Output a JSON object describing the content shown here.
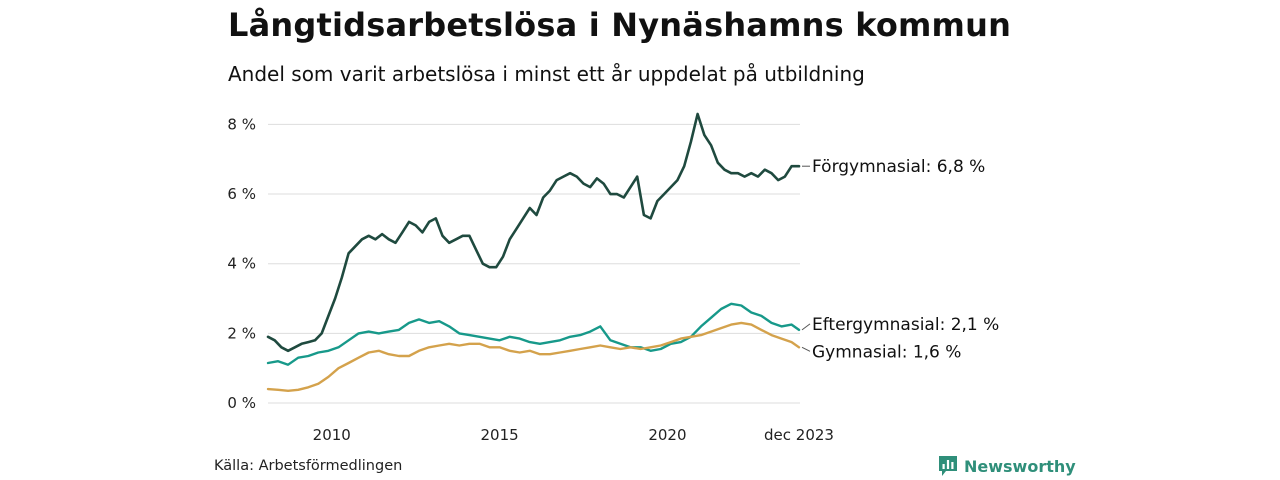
{
  "header": {
    "title": "Långtidsarbetslösa i Nynäshamns kommun",
    "subtitle": "Andel som varit arbetslösa i minst ett år uppdelat på utbildning"
  },
  "footer": {
    "source": "Källa: Arbetsförmedlingen",
    "brand": "Newsworthy"
  },
  "colors": {
    "forgymnasial": "#1f4a3f",
    "eftergymnasial": "#17998a",
    "gymnasial": "#d4a24c",
    "grid": "#dddddd",
    "brand": "#2f8f7a"
  },
  "chart_data": {
    "type": "line",
    "title": "Långtidsarbetslösa i Nynäshamns kommun",
    "subtitle": "Andel som varit arbetslösa i minst ett år uppdelat på utbildning",
    "xlim": [
      2008.1,
      2023.95
    ],
    "ylim": [
      0,
      8.5
    ],
    "y_ticks": [
      0,
      2,
      4,
      6,
      8
    ],
    "y_tick_labels": [
      "0 %",
      "2 %",
      "4 %",
      "6 %",
      "8 %"
    ],
    "x_ticks": [
      2010,
      2015,
      2020,
      2023.92
    ],
    "x_tick_labels": [
      "2010",
      "2015",
      "2020",
      "dec 2023"
    ],
    "grid": true,
    "series": [
      {
        "name": "Förgymnasial",
        "label": "Förgymnasial: 6,8 %",
        "color": "#1f4a3f",
        "x": [
          2008.1,
          2008.3,
          2008.5,
          2008.7,
          2008.9,
          2009.1,
          2009.3,
          2009.5,
          2009.7,
          2009.9,
          2010.1,
          2010.3,
          2010.5,
          2010.7,
          2010.9,
          2011.1,
          2011.3,
          2011.5,
          2011.7,
          2011.9,
          2012.1,
          2012.3,
          2012.5,
          2012.7,
          2012.9,
          2013.1,
          2013.3,
          2013.5,
          2013.7,
          2013.9,
          2014.1,
          2014.3,
          2014.5,
          2014.7,
          2014.9,
          2015.1,
          2015.3,
          2015.5,
          2015.7,
          2015.9,
          2016.1,
          2016.3,
          2016.5,
          2016.7,
          2016.9,
          2017.1,
          2017.3,
          2017.5,
          2017.7,
          2017.9,
          2018.1,
          2018.3,
          2018.5,
          2018.7,
          2018.9,
          2019.1,
          2019.3,
          2019.5,
          2019.7,
          2019.9,
          2020.1,
          2020.3,
          2020.5,
          2020.7,
          2020.9,
          2021.1,
          2021.3,
          2021.5,
          2021.7,
          2021.9,
          2022.1,
          2022.3,
          2022.5,
          2022.7,
          2022.9,
          2023.1,
          2023.3,
          2023.5,
          2023.7,
          2023.92
        ],
        "values": [
          1.9,
          1.8,
          1.6,
          1.5,
          1.6,
          1.7,
          1.75,
          1.8,
          2.0,
          2.5,
          3.0,
          3.6,
          4.3,
          4.5,
          4.7,
          4.8,
          4.7,
          4.85,
          4.7,
          4.6,
          4.9,
          5.2,
          5.1,
          4.9,
          5.2,
          5.3,
          4.8,
          4.6,
          4.7,
          4.8,
          4.8,
          4.4,
          4.0,
          3.9,
          3.9,
          4.2,
          4.7,
          5.0,
          5.3,
          5.6,
          5.4,
          5.9,
          6.1,
          6.4,
          6.5,
          6.6,
          6.5,
          6.3,
          6.2,
          6.45,
          6.3,
          6.0,
          6.0,
          5.9,
          6.2,
          6.5,
          5.4,
          5.3,
          5.8,
          6.0,
          6.2,
          6.4,
          6.8,
          7.5,
          8.3,
          7.7,
          7.4,
          6.9,
          6.7,
          6.6,
          6.6,
          6.5,
          6.6,
          6.5,
          6.7,
          6.6,
          6.4,
          6.5,
          6.8,
          6.8
        ]
      },
      {
        "name": "Eftergymnasial",
        "label": "Eftergymnasial: 2,1 %",
        "color": "#17998a",
        "x": [
          2008.1,
          2008.4,
          2008.7,
          2009.0,
          2009.3,
          2009.6,
          2009.9,
          2010.2,
          2010.5,
          2010.8,
          2011.1,
          2011.4,
          2011.7,
          2012.0,
          2012.3,
          2012.6,
          2012.9,
          2013.2,
          2013.5,
          2013.8,
          2014.1,
          2014.4,
          2014.7,
          2015.0,
          2015.3,
          2015.6,
          2015.9,
          2016.2,
          2016.5,
          2016.8,
          2017.1,
          2017.4,
          2017.7,
          2018.0,
          2018.3,
          2018.6,
          2018.9,
          2019.2,
          2019.5,
          2019.8,
          2020.1,
          2020.4,
          2020.7,
          2021.0,
          2021.3,
          2021.6,
          2021.9,
          2022.2,
          2022.5,
          2022.8,
          2023.1,
          2023.4,
          2023.7,
          2023.92
        ],
        "values": [
          1.15,
          1.2,
          1.1,
          1.3,
          1.35,
          1.45,
          1.5,
          1.6,
          1.8,
          2.0,
          2.05,
          2.0,
          2.05,
          2.1,
          2.3,
          2.4,
          2.3,
          2.35,
          2.2,
          2.0,
          1.95,
          1.9,
          1.85,
          1.8,
          1.9,
          1.85,
          1.75,
          1.7,
          1.75,
          1.8,
          1.9,
          1.95,
          2.05,
          2.2,
          1.8,
          1.7,
          1.6,
          1.6,
          1.5,
          1.55,
          1.7,
          1.75,
          1.9,
          2.2,
          2.45,
          2.7,
          2.85,
          2.8,
          2.6,
          2.5,
          2.3,
          2.2,
          2.25,
          2.1
        ]
      },
      {
        "name": "Gymnasial",
        "label": "Gymnasial: 1,6 %",
        "color": "#d4a24c",
        "x": [
          2008.1,
          2008.4,
          2008.7,
          2009.0,
          2009.3,
          2009.6,
          2009.9,
          2010.2,
          2010.5,
          2010.8,
          2011.1,
          2011.4,
          2011.7,
          2012.0,
          2012.3,
          2012.6,
          2012.9,
          2013.2,
          2013.5,
          2013.8,
          2014.1,
          2014.4,
          2014.7,
          2015.0,
          2015.3,
          2015.6,
          2015.9,
          2016.2,
          2016.5,
          2016.8,
          2017.1,
          2017.4,
          2017.7,
          2018.0,
          2018.3,
          2018.6,
          2018.9,
          2019.2,
          2019.5,
          2019.8,
          2020.1,
          2020.4,
          2020.7,
          2021.0,
          2021.3,
          2021.6,
          2021.9,
          2022.2,
          2022.5,
          2022.8,
          2023.1,
          2023.4,
          2023.7,
          2023.92
        ],
        "values": [
          0.4,
          0.38,
          0.35,
          0.38,
          0.45,
          0.55,
          0.75,
          1.0,
          1.15,
          1.3,
          1.45,
          1.5,
          1.4,
          1.35,
          1.35,
          1.5,
          1.6,
          1.65,
          1.7,
          1.65,
          1.7,
          1.7,
          1.6,
          1.6,
          1.5,
          1.45,
          1.5,
          1.4,
          1.4,
          1.45,
          1.5,
          1.55,
          1.6,
          1.65,
          1.6,
          1.55,
          1.6,
          1.55,
          1.6,
          1.65,
          1.75,
          1.85,
          1.9,
          1.95,
          2.05,
          2.15,
          2.25,
          2.3,
          2.25,
          2.1,
          1.95,
          1.85,
          1.75,
          1.6
        ]
      }
    ]
  }
}
